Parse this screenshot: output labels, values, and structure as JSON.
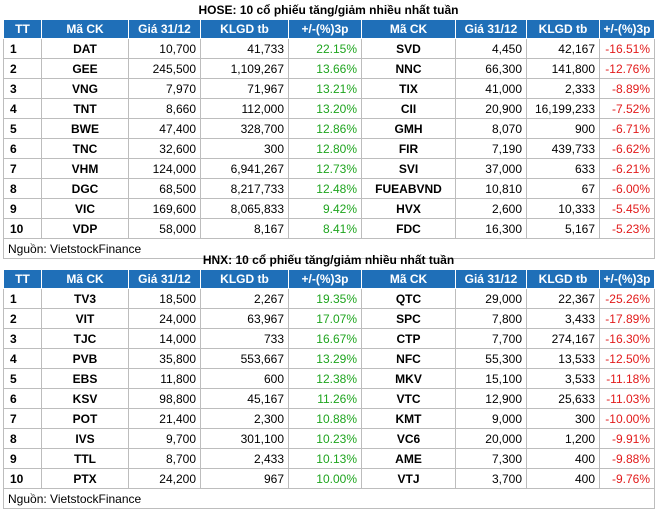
{
  "headers": [
    "TT",
    "Mã CK",
    "Giá 31/12",
    "KLGD tb",
    "+/-(%)3p",
    "Mã CK",
    "Giá 31/12",
    "KLGD tb",
    "+/-(%)3p"
  ],
  "source": "Nguồn: VietstockFinance",
  "colors": {
    "header_bg": "#1f6fb8",
    "gain": "#1fa51f",
    "loss": "#e21a1a"
  },
  "hose": {
    "title": "HOSE: 10 cổ phiếu tăng/giảm nhiều nhất tuần",
    "rows": [
      {
        "tt": "1",
        "g_code": "DAT",
        "g_price": "10,700",
        "g_vol": "41,733",
        "g_pct": "22.15%",
        "l_code": "SVD",
        "l_price": "4,450",
        "l_vol": "42,167",
        "l_pct": "-16.51%"
      },
      {
        "tt": "2",
        "g_code": "GEE",
        "g_price": "245,500",
        "g_vol": "1,109,267",
        "g_pct": "13.66%",
        "l_code": "NNC",
        "l_price": "66,300",
        "l_vol": "141,800",
        "l_pct": "-12.76%"
      },
      {
        "tt": "3",
        "g_code": "VNG",
        "g_price": "7,970",
        "g_vol": "71,967",
        "g_pct": "13.21%",
        "l_code": "TIX",
        "l_price": "41,000",
        "l_vol": "2,333",
        "l_pct": "-8.89%"
      },
      {
        "tt": "4",
        "g_code": "TNT",
        "g_price": "8,660",
        "g_vol": "112,000",
        "g_pct": "13.20%",
        "l_code": "CII",
        "l_price": "20,900",
        "l_vol": "16,199,233",
        "l_pct": "-7.52%"
      },
      {
        "tt": "5",
        "g_code": "BWE",
        "g_price": "47,400",
        "g_vol": "328,700",
        "g_pct": "12.86%",
        "l_code": "GMH",
        "l_price": "8,070",
        "l_vol": "900",
        "l_pct": "-6.71%"
      },
      {
        "tt": "6",
        "g_code": "TNC",
        "g_price": "32,600",
        "g_vol": "300",
        "g_pct": "12.80%",
        "l_code": "FIR",
        "l_price": "7,190",
        "l_vol": "439,733",
        "l_pct": "-6.62%"
      },
      {
        "tt": "7",
        "g_code": "VHM",
        "g_price": "124,000",
        "g_vol": "6,941,267",
        "g_pct": "12.73%",
        "l_code": "SVI",
        "l_price": "37,000",
        "l_vol": "633",
        "l_pct": "-6.21%"
      },
      {
        "tt": "8",
        "g_code": "DGC",
        "g_price": "68,500",
        "g_vol": "8,217,733",
        "g_pct": "12.48%",
        "l_code": "FUEABVND",
        "l_price": "10,810",
        "l_vol": "67",
        "l_pct": "-6.00%"
      },
      {
        "tt": "9",
        "g_code": "VIC",
        "g_price": "169,600",
        "g_vol": "8,065,833",
        "g_pct": "9.42%",
        "l_code": "HVX",
        "l_price": "2,600",
        "l_vol": "10,333",
        "l_pct": "-5.45%"
      },
      {
        "tt": "10",
        "g_code": "VDP",
        "g_price": "58,000",
        "g_vol": "8,167",
        "g_pct": "8.41%",
        "l_code": "FDC",
        "l_price": "16,300",
        "l_vol": "5,167",
        "l_pct": "-5.23%"
      }
    ]
  },
  "hnx": {
    "title": "HNX: 10 cổ phiếu tăng/giảm nhiều nhất tuần",
    "rows": [
      {
        "tt": "1",
        "g_code": "TV3",
        "g_price": "18,500",
        "g_vol": "2,267",
        "g_pct": "19.35%",
        "l_code": "QTC",
        "l_price": "29,000",
        "l_vol": "22,367",
        "l_pct": "-25.26%"
      },
      {
        "tt": "2",
        "g_code": "VIT",
        "g_price": "24,000",
        "g_vol": "63,967",
        "g_pct": "17.07%",
        "l_code": "SPC",
        "l_price": "7,800",
        "l_vol": "3,433",
        "l_pct": "-17.89%"
      },
      {
        "tt": "3",
        "g_code": "TJC",
        "g_price": "14,000",
        "g_vol": "733",
        "g_pct": "16.67%",
        "l_code": "CTP",
        "l_price": "7,700",
        "l_vol": "274,167",
        "l_pct": "-16.30%"
      },
      {
        "tt": "4",
        "g_code": "PVB",
        "g_price": "35,800",
        "g_vol": "553,667",
        "g_pct": "13.29%",
        "l_code": "NFC",
        "l_price": "55,300",
        "l_vol": "13,533",
        "l_pct": "-12.50%"
      },
      {
        "tt": "5",
        "g_code": "EBS",
        "g_price": "11,800",
        "g_vol": "600",
        "g_pct": "12.38%",
        "l_code": "MKV",
        "l_price": "15,100",
        "l_vol": "3,533",
        "l_pct": "-11.18%"
      },
      {
        "tt": "6",
        "g_code": "KSV",
        "g_price": "98,800",
        "g_vol": "45,167",
        "g_pct": "11.26%",
        "l_code": "VTC",
        "l_price": "12,900",
        "l_vol": "25,633",
        "l_pct": "-11.03%"
      },
      {
        "tt": "7",
        "g_code": "POT",
        "g_price": "21,400",
        "g_vol": "2,300",
        "g_pct": "10.88%",
        "l_code": "KMT",
        "l_price": "9,000",
        "l_vol": "300",
        "l_pct": "-10.00%"
      },
      {
        "tt": "8",
        "g_code": "IVS",
        "g_price": "9,700",
        "g_vol": "301,100",
        "g_pct": "10.23%",
        "l_code": "VC6",
        "l_price": "20,000",
        "l_vol": "1,200",
        "l_pct": "-9.91%"
      },
      {
        "tt": "9",
        "g_code": "TTL",
        "g_price": "8,700",
        "g_vol": "2,433",
        "g_pct": "10.13%",
        "l_code": "AME",
        "l_price": "7,300",
        "l_vol": "400",
        "l_pct": "-9.88%"
      },
      {
        "tt": "10",
        "g_code": "PTX",
        "g_price": "24,200",
        "g_vol": "967",
        "g_pct": "10.00%",
        "l_code": "VTJ",
        "l_price": "3,700",
        "l_vol": "400",
        "l_pct": "-9.76%"
      }
    ]
  }
}
